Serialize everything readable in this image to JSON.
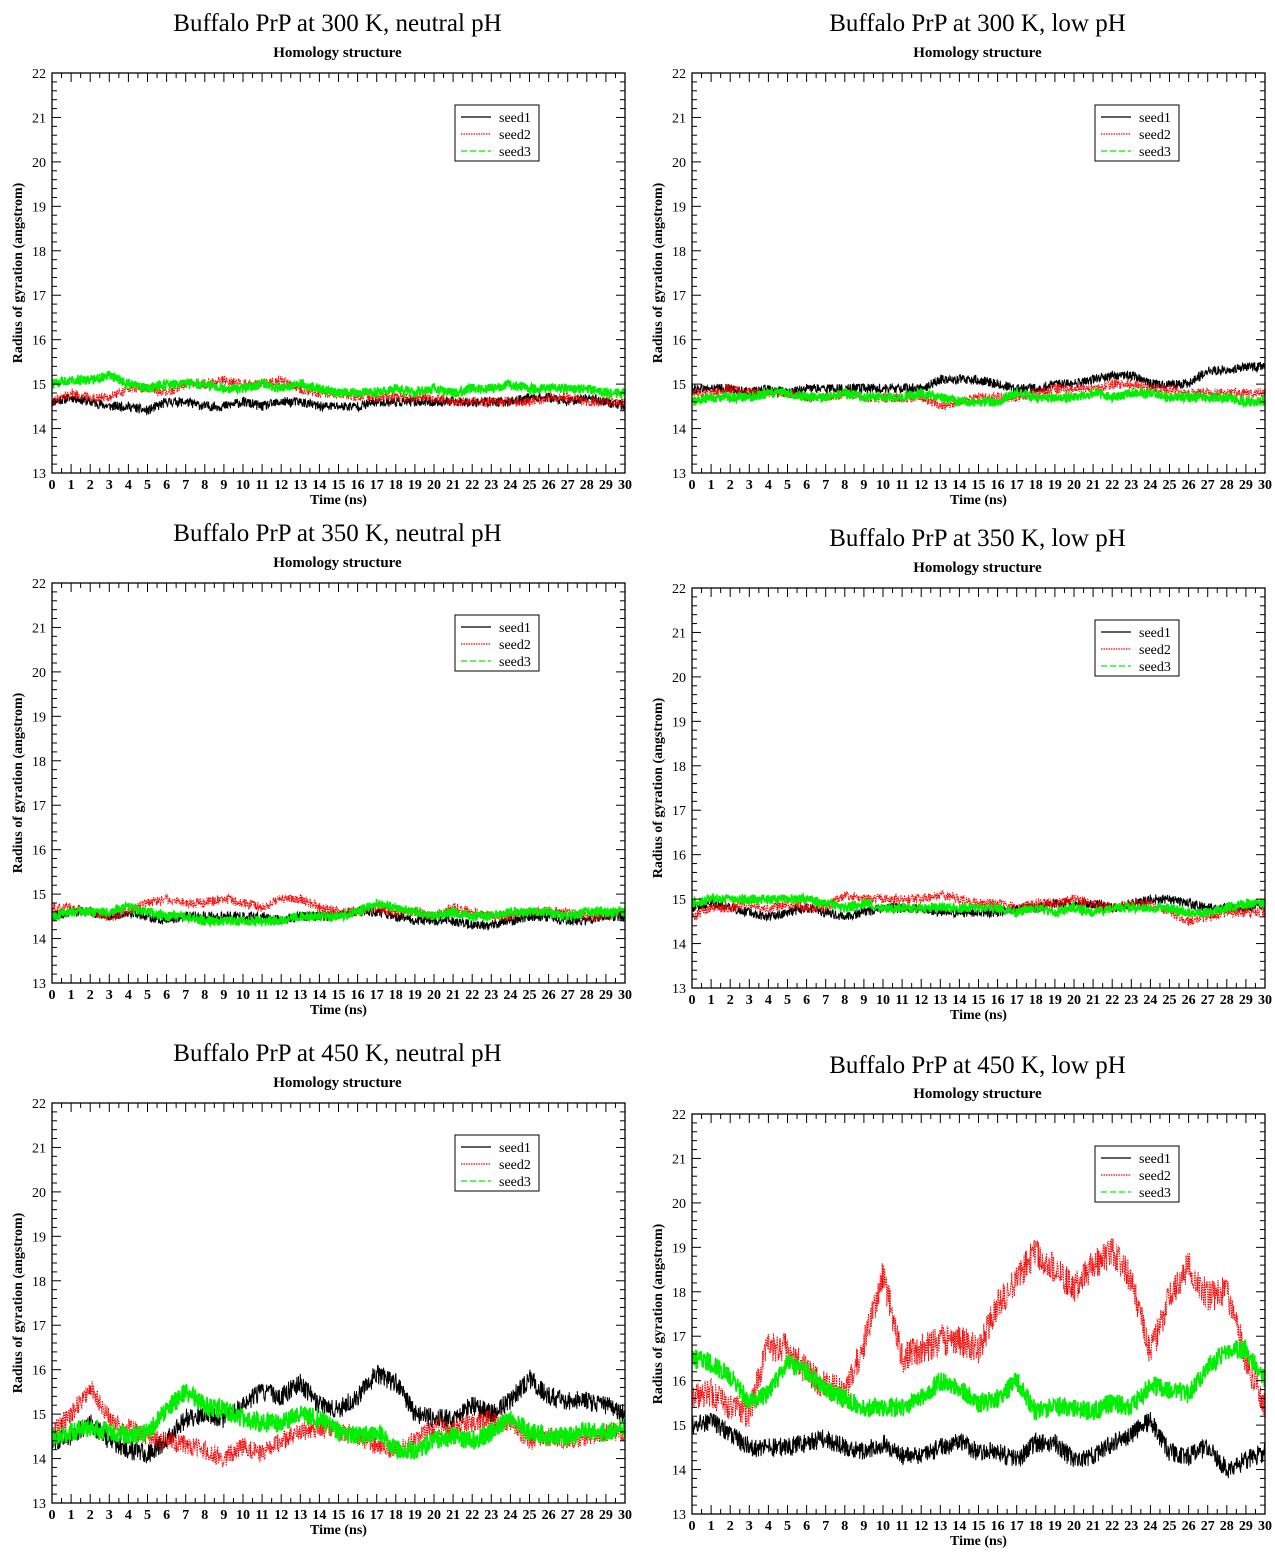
{
  "common": {
    "subtitle": "Homology structure",
    "xlabel": "Time (ns)",
    "ylabel": "Radius of gyration (angstrom)",
    "xlim": [
      0,
      30
    ],
    "ylim": [
      13,
      22
    ],
    "xticks": [
      0,
      1,
      2,
      3,
      4,
      5,
      6,
      7,
      8,
      9,
      10,
      11,
      12,
      13,
      14,
      15,
      16,
      17,
      18,
      19,
      20,
      21,
      22,
      23,
      24,
      25,
      26,
      27,
      28,
      29,
      30
    ],
    "yticks": [
      13,
      14,
      15,
      16,
      17,
      18,
      19,
      20,
      21,
      22
    ],
    "legend": [
      "seed1",
      "seed2",
      "seed3"
    ],
    "colors": {
      "seed1": "#000000",
      "seed2": "#ff0000",
      "seed3": "#00ee00"
    }
  },
  "chart_data": [
    {
      "type": "line",
      "title": "Buffalo PrP at 300 K, neutral pH",
      "subtitle": "Homology structure",
      "xlabel": "Time (ns)",
      "ylabel": "Radius of gyration (angstrom)",
      "xlim": [
        0,
        30
      ],
      "ylim": [
        13,
        22
      ],
      "legend_position": "top-right",
      "x": [
        0,
        1,
        2,
        3,
        4,
        5,
        6,
        7,
        8,
        9,
        10,
        11,
        12,
        13,
        14,
        15,
        16,
        17,
        18,
        19,
        20,
        21,
        22,
        23,
        24,
        25,
        26,
        27,
        28,
        29,
        30
      ],
      "series": [
        {
          "name": "seed1",
          "values": [
            14.6,
            14.7,
            14.6,
            14.5,
            14.5,
            14.4,
            14.6,
            14.6,
            14.5,
            14.5,
            14.6,
            14.5,
            14.6,
            14.6,
            14.5,
            14.5,
            14.5,
            14.6,
            14.6,
            14.6,
            14.6,
            14.6,
            14.6,
            14.6,
            14.6,
            14.7,
            14.7,
            14.6,
            14.7,
            14.6,
            14.5
          ]
        },
        {
          "name": "seed2",
          "values": [
            14.6,
            14.8,
            14.7,
            14.7,
            14.9,
            14.9,
            14.8,
            15.0,
            15.0,
            15.1,
            15.0,
            15.0,
            15.1,
            14.9,
            14.8,
            14.8,
            14.7,
            14.7,
            14.7,
            14.7,
            14.7,
            14.6,
            14.6,
            14.6,
            14.6,
            14.6,
            14.7,
            14.7,
            14.6,
            14.6,
            14.6
          ]
        },
        {
          "name": "seed3",
          "values": [
            15.0,
            15.1,
            15.1,
            15.2,
            15.0,
            14.9,
            15.0,
            15.0,
            15.0,
            14.9,
            14.9,
            15.0,
            14.9,
            15.0,
            14.9,
            14.8,
            14.8,
            14.8,
            14.9,
            14.8,
            14.9,
            14.8,
            14.9,
            14.9,
            15.0,
            14.9,
            14.9,
            14.9,
            14.9,
            14.8,
            14.8
          ]
        }
      ]
    },
    {
      "type": "line",
      "title": "Buffalo PrP at 300 K, low pH",
      "subtitle": "Homology structure",
      "xlabel": "Time (ns)",
      "ylabel": "Radius of gyration (angstrom)",
      "xlim": [
        0,
        30
      ],
      "ylim": [
        13,
        22
      ],
      "legend_position": "top-right",
      "x": [
        0,
        1,
        2,
        3,
        4,
        5,
        6,
        7,
        8,
        9,
        10,
        11,
        12,
        13,
        14,
        15,
        16,
        17,
        18,
        19,
        20,
        21,
        22,
        23,
        24,
        25,
        26,
        27,
        28,
        29,
        30
      ],
      "series": [
        {
          "name": "seed1",
          "values": [
            14.9,
            14.9,
            14.9,
            14.8,
            14.9,
            14.8,
            14.9,
            14.9,
            14.9,
            14.9,
            14.9,
            14.9,
            14.9,
            15.1,
            15.1,
            15.1,
            15.0,
            14.9,
            14.9,
            15.0,
            15.0,
            15.1,
            15.2,
            15.2,
            15.0,
            15.0,
            15.0,
            15.3,
            15.3,
            15.4,
            15.4
          ]
        },
        {
          "name": "seed2",
          "values": [
            14.8,
            14.8,
            14.9,
            14.8,
            14.8,
            14.8,
            14.7,
            14.7,
            14.8,
            14.7,
            14.7,
            14.7,
            14.7,
            14.5,
            14.6,
            14.7,
            14.7,
            14.7,
            14.8,
            14.9,
            14.9,
            14.9,
            15.0,
            15.0,
            14.9,
            14.9,
            14.8,
            14.8,
            14.8,
            14.8,
            14.8
          ]
        },
        {
          "name": "seed3",
          "values": [
            14.6,
            14.7,
            14.7,
            14.7,
            14.8,
            14.8,
            14.7,
            14.7,
            14.8,
            14.7,
            14.7,
            14.7,
            14.8,
            14.7,
            14.6,
            14.6,
            14.6,
            14.8,
            14.7,
            14.7,
            14.7,
            14.8,
            14.7,
            14.8,
            14.8,
            14.7,
            14.7,
            14.7,
            14.7,
            14.6,
            14.6
          ]
        }
      ]
    },
    {
      "type": "line",
      "title": "Buffalo PrP at 350 K, neutral pH",
      "subtitle": "Homology structure",
      "xlabel": "Time (ns)",
      "ylabel": "Radius of gyration (angstrom)",
      "xlim": [
        0,
        30
      ],
      "ylim": [
        13,
        22
      ],
      "legend_position": "top-right",
      "x": [
        0,
        1,
        2,
        3,
        4,
        5,
        6,
        7,
        8,
        9,
        10,
        11,
        12,
        13,
        14,
        15,
        16,
        17,
        18,
        19,
        20,
        21,
        22,
        23,
        24,
        25,
        26,
        27,
        28,
        29,
        30
      ],
      "series": [
        {
          "name": "seed1",
          "values": [
            14.5,
            14.6,
            14.6,
            14.5,
            14.6,
            14.5,
            14.4,
            14.5,
            14.5,
            14.5,
            14.5,
            14.5,
            14.4,
            14.5,
            14.5,
            14.5,
            14.6,
            14.6,
            14.5,
            14.4,
            14.4,
            14.4,
            14.3,
            14.3,
            14.4,
            14.5,
            14.5,
            14.4,
            14.4,
            14.5,
            14.5
          ]
        },
        {
          "name": "seed2",
          "values": [
            14.7,
            14.7,
            14.6,
            14.5,
            14.6,
            14.8,
            14.9,
            14.8,
            14.8,
            14.9,
            14.8,
            14.7,
            14.9,
            14.9,
            14.7,
            14.6,
            14.6,
            14.7,
            14.6,
            14.6,
            14.5,
            14.7,
            14.6,
            14.5,
            14.5,
            14.6,
            14.6,
            14.6,
            14.5,
            14.5,
            14.6
          ]
        },
        {
          "name": "seed3",
          "values": [
            14.5,
            14.6,
            14.6,
            14.6,
            14.7,
            14.6,
            14.5,
            14.5,
            14.4,
            14.4,
            14.4,
            14.4,
            14.4,
            14.5,
            14.5,
            14.5,
            14.6,
            14.8,
            14.7,
            14.6,
            14.5,
            14.6,
            14.5,
            14.5,
            14.6,
            14.6,
            14.6,
            14.5,
            14.6,
            14.6,
            14.6
          ]
        }
      ]
    },
    {
      "type": "line",
      "title": "Buffalo PrP at 350 K, low pH",
      "subtitle": "Homology structure",
      "xlabel": "Time (ns)",
      "ylabel": "Radius of gyration (angstrom)",
      "xlim": [
        0,
        30
      ],
      "ylim": [
        13,
        22
      ],
      "legend_position": "top-right",
      "x": [
        0,
        1,
        2,
        3,
        4,
        5,
        6,
        7,
        8,
        9,
        10,
        11,
        12,
        13,
        14,
        15,
        16,
        17,
        18,
        19,
        20,
        21,
        22,
        23,
        24,
        25,
        26,
        27,
        28,
        29,
        30
      ],
      "series": [
        {
          "name": "seed1",
          "values": [
            14.8,
            14.9,
            14.8,
            14.7,
            14.6,
            14.7,
            14.8,
            14.7,
            14.6,
            14.7,
            14.8,
            14.8,
            14.8,
            14.7,
            14.7,
            14.7,
            14.7,
            14.8,
            14.8,
            14.9,
            14.9,
            14.9,
            14.8,
            14.9,
            15.0,
            15.0,
            14.9,
            14.8,
            14.8,
            14.8,
            14.9
          ]
        },
        {
          "name": "seed2",
          "values": [
            14.6,
            14.8,
            14.8,
            14.9,
            14.8,
            14.9,
            14.8,
            14.8,
            15.1,
            15.0,
            15.0,
            15.0,
            15.0,
            15.1,
            15.0,
            14.9,
            14.9,
            14.8,
            14.9,
            14.9,
            15.0,
            14.9,
            14.8,
            14.9,
            14.9,
            14.7,
            14.5,
            14.6,
            14.7,
            14.7,
            14.7
          ]
        },
        {
          "name": "seed3",
          "values": [
            14.9,
            15.0,
            15.0,
            15.0,
            15.0,
            15.0,
            15.0,
            14.9,
            14.8,
            14.9,
            14.8,
            14.8,
            14.8,
            14.8,
            14.8,
            14.8,
            14.8,
            14.7,
            14.8,
            14.7,
            14.8,
            14.7,
            14.8,
            14.8,
            14.8,
            14.8,
            14.7,
            14.7,
            14.8,
            14.9,
            14.9
          ]
        }
      ]
    },
    {
      "type": "line",
      "title": "Buffalo PrP at 450 K, neutral pH",
      "subtitle": "Homology structure",
      "xlabel": "Time (ns)",
      "ylabel": "Radius of gyration (angstrom)",
      "xlim": [
        0,
        30
      ],
      "ylim": [
        13,
        22
      ],
      "legend_position": "top-right",
      "x": [
        0,
        1,
        2,
        3,
        4,
        5,
        6,
        7,
        8,
        9,
        10,
        11,
        12,
        13,
        14,
        15,
        16,
        17,
        18,
        19,
        20,
        21,
        22,
        23,
        24,
        25,
        26,
        27,
        28,
        29,
        30
      ],
      "series": [
        {
          "name": "seed1",
          "values": [
            14.4,
            14.5,
            14.8,
            14.4,
            14.2,
            14.1,
            14.4,
            14.9,
            15.0,
            14.9,
            15.2,
            15.5,
            15.4,
            15.7,
            15.2,
            15.1,
            15.4,
            15.9,
            15.7,
            15.0,
            14.9,
            14.9,
            15.2,
            15.0,
            15.3,
            15.8,
            15.4,
            15.3,
            15.3,
            15.2,
            15.0
          ]
        },
        {
          "name": "seed2",
          "values": [
            14.6,
            15.0,
            15.6,
            14.9,
            14.7,
            14.5,
            14.4,
            14.3,
            14.2,
            14.0,
            14.3,
            14.1,
            14.4,
            14.6,
            14.7,
            14.6,
            14.5,
            14.3,
            14.2,
            14.4,
            14.7,
            14.7,
            14.8,
            14.9,
            14.8,
            14.4,
            14.5,
            14.4,
            14.5,
            14.6,
            14.6
          ]
        },
        {
          "name": "seed3",
          "values": [
            14.5,
            14.6,
            14.7,
            14.6,
            14.5,
            14.6,
            15.1,
            15.5,
            15.2,
            15.1,
            14.9,
            14.8,
            14.8,
            15.0,
            14.9,
            14.6,
            14.5,
            14.6,
            14.2,
            14.2,
            14.4,
            14.5,
            14.4,
            14.6,
            14.9,
            14.6,
            14.5,
            14.5,
            14.6,
            14.6,
            14.7
          ]
        }
      ]
    },
    {
      "type": "line",
      "title": "Buffalo PrP at 450 K, low pH",
      "subtitle": "Homology structure",
      "xlabel": "Time (ns)",
      "ylabel": "Radius of gyration (angstrom)",
      "xlim": [
        0,
        30
      ],
      "ylim": [
        13,
        22
      ],
      "legend_position": "top-right",
      "x": [
        0,
        1,
        2,
        3,
        4,
        5,
        6,
        7,
        8,
        9,
        10,
        11,
        12,
        13,
        14,
        15,
        16,
        17,
        18,
        19,
        20,
        21,
        22,
        23,
        24,
        25,
        26,
        27,
        28,
        29,
        30
      ],
      "series": [
        {
          "name": "seed1",
          "values": [
            15.0,
            15.1,
            14.8,
            14.5,
            14.5,
            14.5,
            14.6,
            14.7,
            14.5,
            14.4,
            14.6,
            14.3,
            14.3,
            14.5,
            14.6,
            14.4,
            14.4,
            14.2,
            14.6,
            14.6,
            14.2,
            14.3,
            14.6,
            14.8,
            15.1,
            14.4,
            14.3,
            14.5,
            14.0,
            14.2,
            14.4
          ]
        },
        {
          "name": "seed2",
          "values": [
            15.7,
            15.7,
            15.4,
            15.3,
            16.8,
            16.7,
            16.2,
            15.9,
            15.7,
            16.8,
            18.4,
            16.5,
            16.7,
            16.9,
            16.9,
            16.7,
            17.7,
            18.3,
            18.9,
            18.5,
            18.1,
            18.6,
            18.9,
            18.3,
            16.6,
            17.9,
            18.6,
            17.9,
            18.0,
            16.5,
            15.4
          ]
        },
        {
          "name": "seed3",
          "values": [
            16.5,
            16.4,
            16.1,
            15.5,
            15.7,
            16.4,
            16.2,
            15.8,
            15.6,
            15.4,
            15.4,
            15.4,
            15.6,
            16.0,
            15.8,
            15.5,
            15.6,
            16.0,
            15.3,
            15.4,
            15.4,
            15.3,
            15.5,
            15.4,
            15.9,
            15.8,
            15.7,
            16.3,
            16.7,
            16.7,
            16.0
          ]
        }
      ]
    }
  ]
}
